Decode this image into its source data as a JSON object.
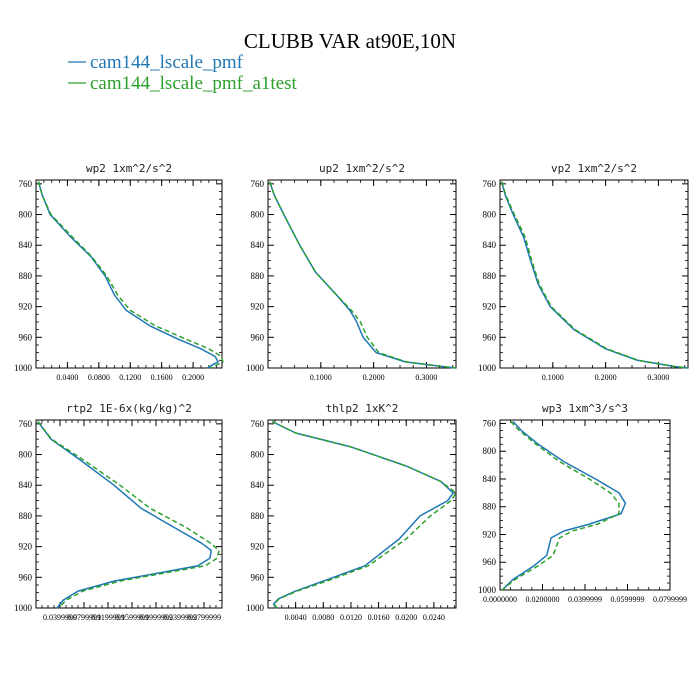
{
  "figure": {
    "title": "CLUBB VAR at90E,10N",
    "legend": [
      {
        "label": "cam144_lscale_pmf",
        "color": "#1f77b4",
        "dash": "solid"
      },
      {
        "label": "cam144_lscale_pmf_a1test",
        "color": "#2ca02c",
        "dash": "dashed"
      }
    ]
  },
  "chart_data": [
    {
      "type": "line",
      "title": "wp2  1xm^2/s^2",
      "ylim": [
        1000,
        755
      ],
      "xlim": [
        0.0,
        0.2368
      ],
      "yticks": [
        "760",
        "800",
        "840",
        "880",
        "920",
        "960",
        "1000"
      ],
      "ytick_values": [
        760,
        800,
        840,
        880,
        920,
        960,
        1000
      ],
      "xticks": [
        "0.0400",
        "0.0800",
        "0.1200",
        "0.1600",
        "0.2000"
      ],
      "xtick_values": [
        0.04,
        0.08,
        0.12,
        0.16,
        0.2
      ],
      "grid": false,
      "series": [
        {
          "name": "cam144_lscale_pmf",
          "x": [
            0.003,
            0.008,
            0.018,
            0.045,
            0.07,
            0.088,
            0.1,
            0.115,
            0.145,
            0.18,
            0.21,
            0.228,
            0.232,
            0.226,
            0.218
          ],
          "y": [
            757,
            775,
            800,
            830,
            855,
            880,
            905,
            925,
            945,
            962,
            975,
            985,
            992,
            995,
            1000
          ]
        },
        {
          "name": "cam144_lscale_pmf_a1test",
          "x": [
            0.003,
            0.008,
            0.019,
            0.047,
            0.071,
            0.09,
            0.104,
            0.12,
            0.152,
            0.19,
            0.22,
            0.236,
            0.238,
            0.232,
            0.222
          ],
          "y": [
            757,
            775,
            800,
            830,
            855,
            880,
            905,
            925,
            945,
            962,
            975,
            985,
            992,
            995,
            1000
          ]
        }
      ]
    },
    {
      "type": "line",
      "title": "up2  1xm^2/s^2",
      "ylim": [
        1000,
        755
      ],
      "xlim": [
        0.0,
        0.356
      ],
      "yticks": [
        "760",
        "800",
        "840",
        "880",
        "920",
        "960",
        "1000"
      ],
      "ytick_values": [
        760,
        800,
        840,
        880,
        920,
        960,
        1000
      ],
      "xticks": [
        "0.1000",
        "0.2000",
        "0.3000"
      ],
      "xtick_values": [
        0.1,
        0.2,
        0.3
      ],
      "grid": false,
      "series": [
        {
          "name": "cam144_lscale_pmf",
          "x": [
            0.003,
            0.012,
            0.03,
            0.06,
            0.09,
            0.13,
            0.155,
            0.168,
            0.18,
            0.205,
            0.26,
            0.33,
            0.356
          ],
          "y": [
            757,
            775,
            800,
            840,
            875,
            905,
            925,
            940,
            960,
            980,
            992,
            998,
            1000
          ]
        },
        {
          "name": "cam144_lscale_pmf_a1test",
          "x": [
            0.003,
            0.012,
            0.03,
            0.06,
            0.09,
            0.13,
            0.158,
            0.175,
            0.188,
            0.21,
            0.262,
            0.33,
            0.356
          ],
          "y": [
            757,
            775,
            800,
            840,
            875,
            905,
            925,
            940,
            960,
            980,
            992,
            998,
            1000
          ]
        }
      ]
    },
    {
      "type": "line",
      "title": "vp2  1xm^2/s^2",
      "ylim": [
        1000,
        755
      ],
      "xlim": [
        0.0,
        0.356
      ],
      "yticks": [
        "760",
        "800",
        "840",
        "880",
        "920",
        "960",
        "1000"
      ],
      "ytick_values": [
        760,
        800,
        840,
        880,
        920,
        960,
        1000
      ],
      "xticks": [
        "0.1000",
        "0.2000",
        "0.3000"
      ],
      "xtick_values": [
        0.1,
        0.2,
        0.3
      ],
      "grid": false,
      "series": [
        {
          "name": "cam144_lscale_pmf",
          "x": [
            0.003,
            0.01,
            0.025,
            0.045,
            0.058,
            0.072,
            0.095,
            0.14,
            0.2,
            0.26,
            0.33,
            0.356
          ],
          "y": [
            757,
            775,
            800,
            830,
            860,
            890,
            920,
            950,
            975,
            990,
            998,
            1000
          ]
        },
        {
          "name": "cam144_lscale_pmf_a1test",
          "x": [
            0.003,
            0.011,
            0.027,
            0.048,
            0.06,
            0.074,
            0.097,
            0.142,
            0.202,
            0.262,
            0.33,
            0.356
          ],
          "y": [
            757,
            775,
            800,
            830,
            860,
            890,
            920,
            950,
            975,
            990,
            998,
            1000
          ]
        }
      ]
    },
    {
      "type": "line",
      "title": "rtp2  1E-6x(kg/kg)^2",
      "ylim": [
        1000,
        755
      ],
      "xlim": [
        0.0,
        0.31
      ],
      "yticks": [
        "760",
        "800",
        "840",
        "880",
        "920",
        "960",
        "1000"
      ],
      "ytick_values": [
        760,
        800,
        840,
        880,
        920,
        960,
        1000
      ],
      "xticks": [
        "0.0399999",
        "0.0799999",
        "0.1199999",
        "0.1599999",
        "0.1999999",
        "0.2399999",
        "0.2799999"
      ],
      "xtick_values": [
        0.0399999,
        0.0799999,
        0.1199999,
        0.1599999,
        0.1999999,
        0.2399999,
        0.2799999
      ],
      "grid": false,
      "series": [
        {
          "name": "cam144_lscale_pmf",
          "x": [
            0.003,
            0.025,
            0.07,
            0.13,
            0.175,
            0.23,
            0.275,
            0.292,
            0.29,
            0.27,
            0.2,
            0.13,
            0.07,
            0.045,
            0.035
          ],
          "y": [
            757,
            780,
            805,
            840,
            870,
            895,
            915,
            925,
            935,
            945,
            955,
            965,
            978,
            990,
            1000
          ]
        },
        {
          "name": "cam144_lscale_pmf_a1test",
          "x": [
            0.003,
            0.026,
            0.075,
            0.14,
            0.19,
            0.25,
            0.29,
            0.305,
            0.302,
            0.282,
            0.21,
            0.14,
            0.078,
            0.05,
            0.038
          ],
          "y": [
            757,
            780,
            805,
            840,
            870,
            895,
            915,
            925,
            935,
            945,
            955,
            965,
            978,
            990,
            1000
          ]
        }
      ]
    },
    {
      "type": "line",
      "title": "thlp2  1xK^2",
      "ylim": [
        1000,
        755
      ],
      "xlim": [
        0.0,
        0.0272
      ],
      "yticks": [
        "760",
        "800",
        "840",
        "880",
        "920",
        "960",
        "1000"
      ],
      "ytick_values": [
        760,
        800,
        840,
        880,
        920,
        960,
        1000
      ],
      "xticks": [
        "0.0040",
        "0.0080",
        "0.0120",
        "0.0160",
        "0.0200",
        "0.0240"
      ],
      "xtick_values": [
        0.004,
        0.008,
        0.012,
        0.016,
        0.02,
        0.024
      ],
      "grid": false,
      "series": [
        {
          "name": "cam144_lscale_pmf",
          "x": [
            0.0006,
            0.004,
            0.012,
            0.02,
            0.025,
            0.0268,
            0.026,
            0.022,
            0.019,
            0.014,
            0.008,
            0.004,
            0.0015,
            0.0008,
            0.0012
          ],
          "y": [
            757,
            772,
            790,
            815,
            835,
            850,
            860,
            880,
            910,
            945,
            965,
            978,
            988,
            995,
            1000
          ]
        },
        {
          "name": "cam144_lscale_pmf_a1test",
          "x": [
            0.0006,
            0.004,
            0.012,
            0.02,
            0.025,
            0.0272,
            0.0265,
            0.0235,
            0.02,
            0.0145,
            0.0085,
            0.0042,
            0.0016,
            0.0009,
            0.0013
          ],
          "y": [
            757,
            772,
            790,
            815,
            835,
            850,
            860,
            880,
            910,
            945,
            965,
            978,
            988,
            995,
            1000
          ]
        }
      ]
    },
    {
      "type": "line",
      "title": "wp3  1xm^3/s^3",
      "ylim": [
        1000,
        755
      ],
      "xlim": [
        0.0,
        0.08
      ],
      "yticks": [
        "760",
        "800",
        "840",
        "880",
        "920",
        "960",
        "1000"
      ],
      "ytick_values": [
        760,
        800,
        840,
        880,
        920,
        960,
        1000
      ],
      "xticks": [
        "0.0000000",
        "0.0200000",
        "0.0399999",
        "0.0599999",
        "0.0799999"
      ],
      "xtick_values": [
        0.0,
        0.02,
        0.0399999,
        0.0599999,
        0.0799999
      ],
      "grid": false,
      "series": [
        {
          "name": "cam144_lscale_pmf",
          "x": [
            0.006,
            0.01,
            0.018,
            0.03,
            0.045,
            0.056,
            0.059,
            0.057,
            0.042,
            0.03,
            0.024,
            0.022,
            0.016,
            0.006,
            0.001
          ],
          "y": [
            757,
            770,
            790,
            815,
            840,
            860,
            875,
            890,
            905,
            915,
            925,
            950,
            965,
            985,
            1000
          ]
        },
        {
          "name": "cam144_lscale_pmf_a1test",
          "x": [
            0.005,
            0.009,
            0.017,
            0.028,
            0.042,
            0.052,
            0.056,
            0.056,
            0.046,
            0.034,
            0.028,
            0.025,
            0.018,
            0.007,
            0.001
          ],
          "y": [
            757,
            770,
            790,
            815,
            840,
            860,
            875,
            890,
            905,
            915,
            925,
            950,
            965,
            985,
            1000
          ]
        }
      ]
    }
  ]
}
